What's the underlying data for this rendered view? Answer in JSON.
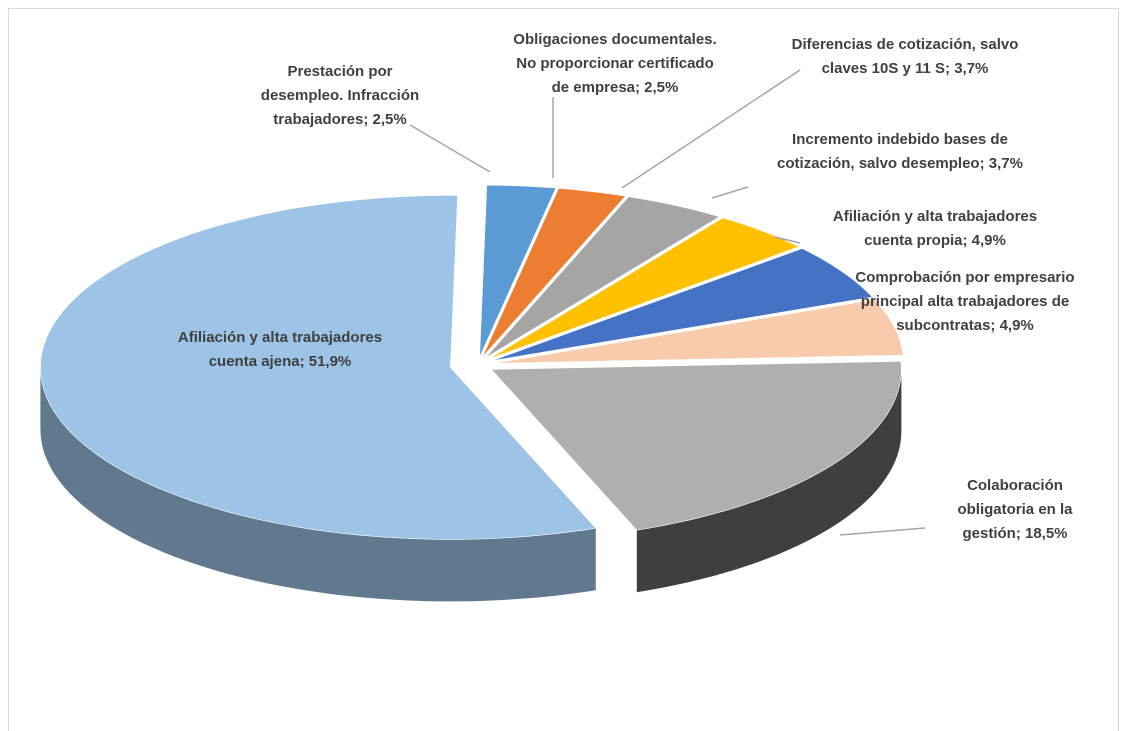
{
  "chart_data": {
    "type": "pie3d",
    "values": [
      2.5,
      2.5,
      3.7,
      3.7,
      4.9,
      4.9,
      18.5,
      51.9
    ],
    "colors": [
      "#5b9bd5",
      "#ed7d31",
      "#a5a5a5",
      "#ffc000",
      "#4472c4",
      "#f8cbad",
      "#b0aeae",
      "#9dc3e6"
    ],
    "data_labels": [
      [
        "Prestación por",
        "desempleo. Infracción",
        "trabajadores; 2,5%"
      ],
      [
        "Obligaciones documentales.",
        "No proporcionar certificado",
        "de empresa; 2,5%"
      ],
      [
        "Diferencias de cotización, salvo",
        "claves 10S y 11 S; 3,7%"
      ],
      [
        "Incremento indebido bases de",
        "cotización, salvo desempleo; 3,7%"
      ],
      [
        "Afiliación y alta trabajadores",
        "cuenta propia; 4,9%"
      ],
      [
        "Comprobación por empresario",
        "principal alta trabajadores de",
        "subcontratas; 4,9%"
      ],
      [
        "Colaboración",
        "obligatoria en la",
        "gestión; 18,5%"
      ],
      [
        "Afiliación y alta trabajadores",
        "cuenta ajena; 51,9%"
      ]
    ]
  }
}
